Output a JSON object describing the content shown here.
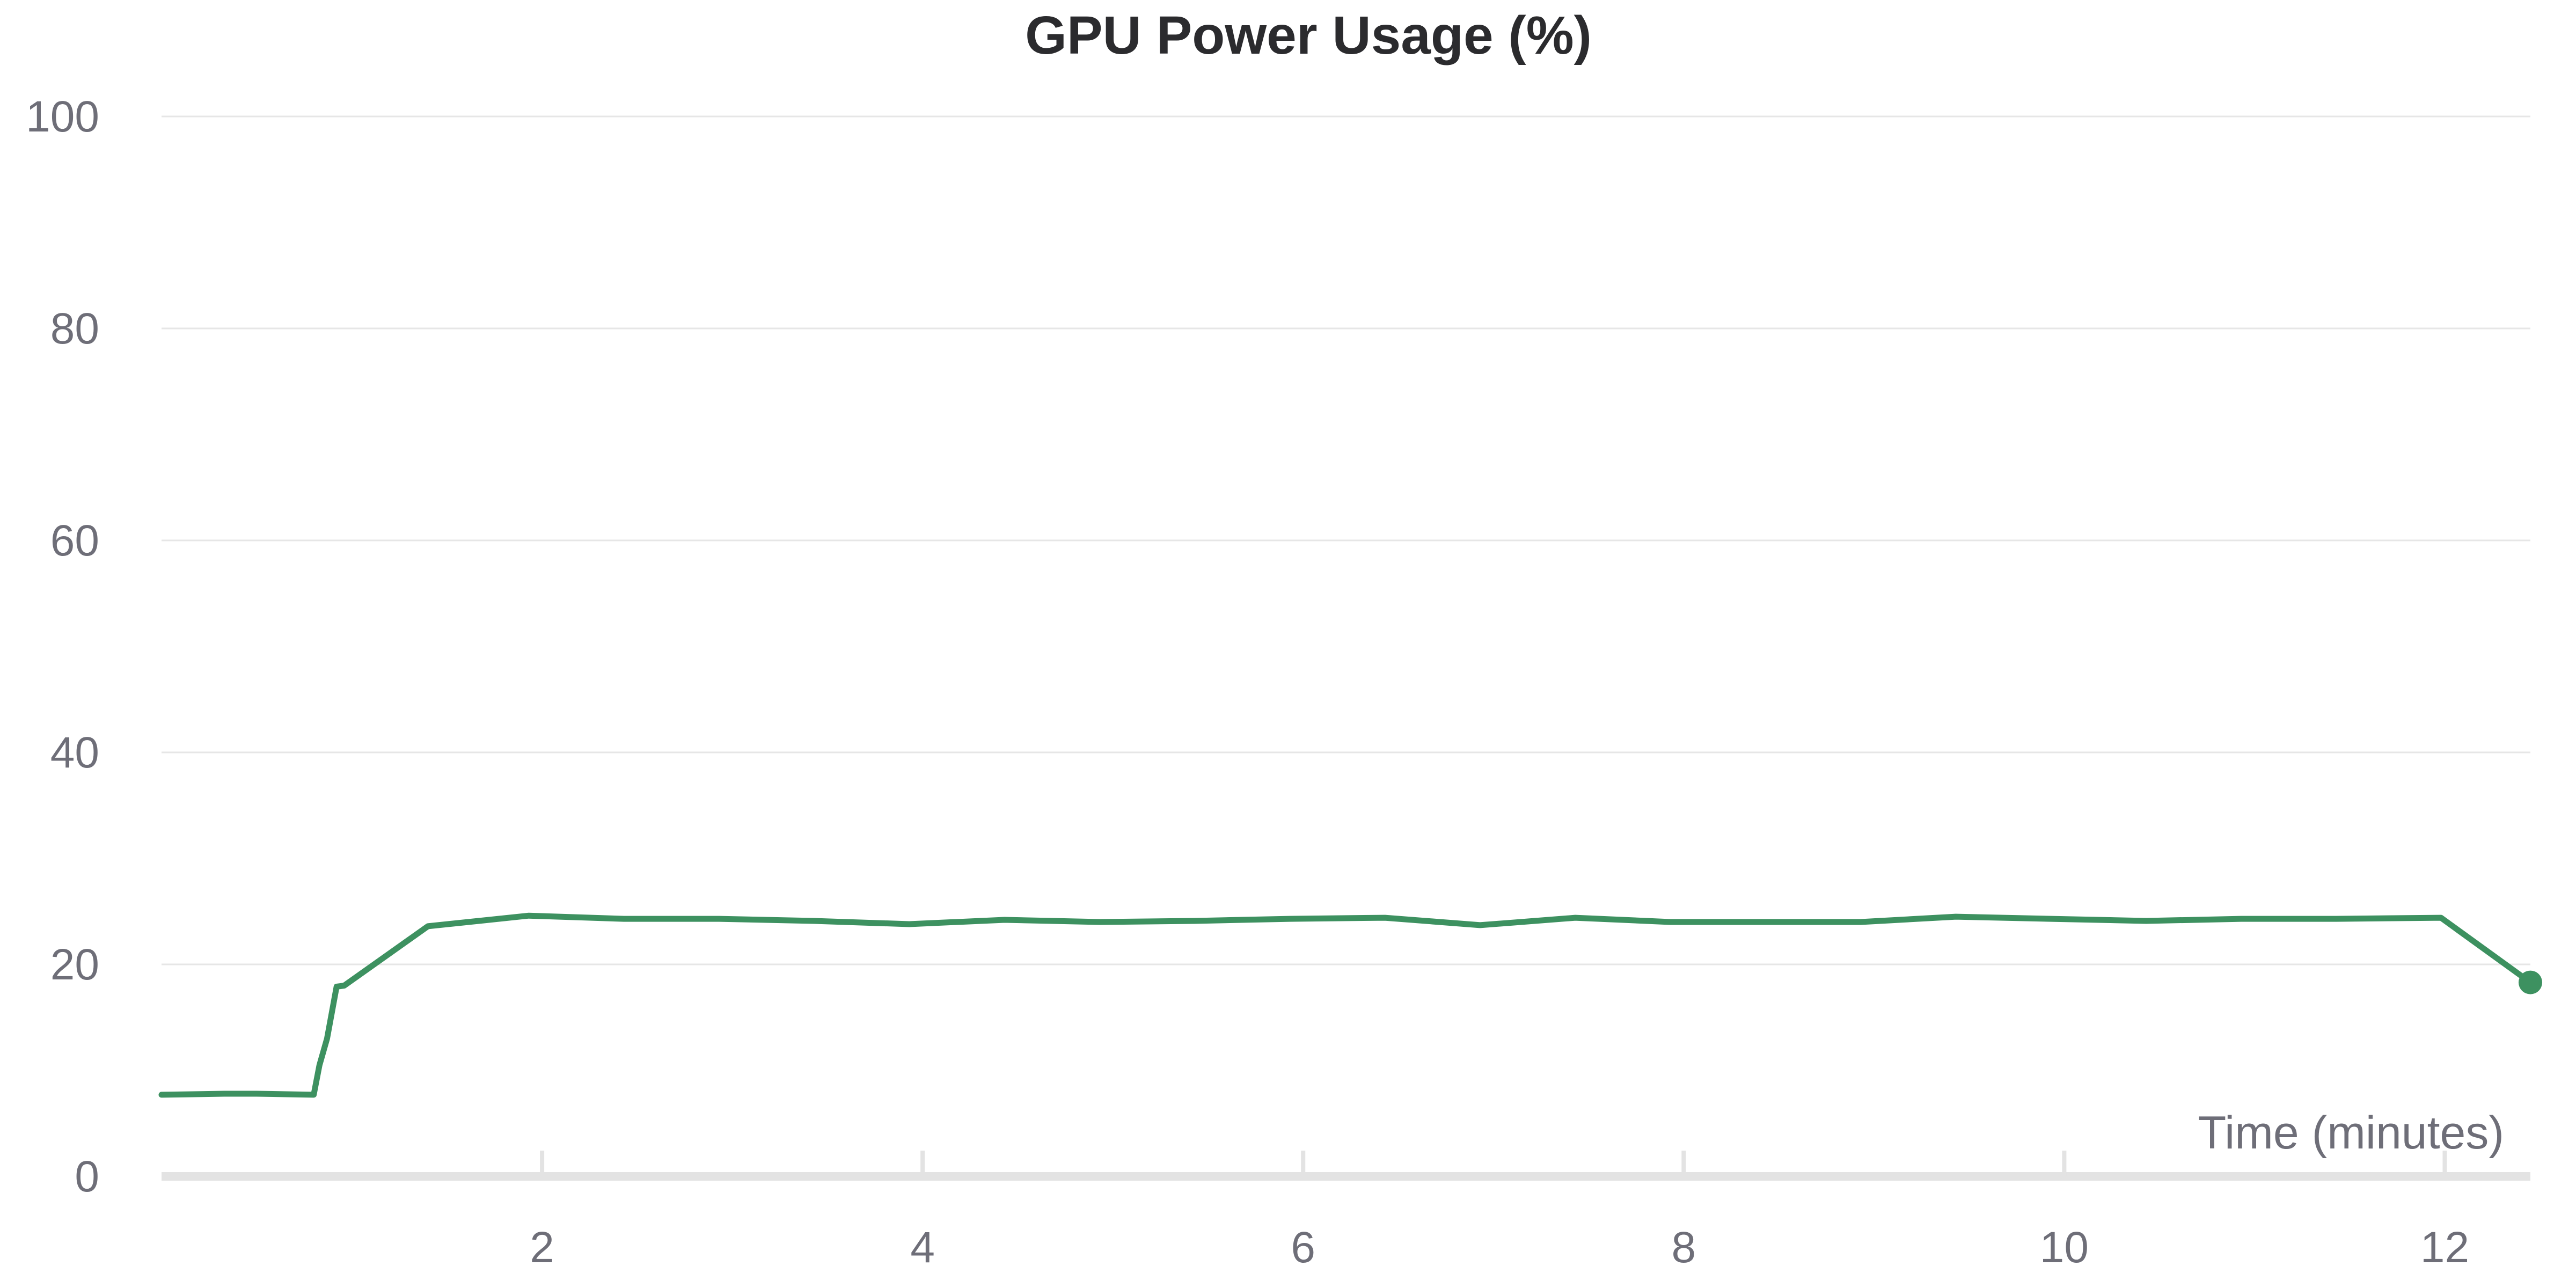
{
  "chart_data": {
    "type": "line",
    "title": "GPU Power Usage (%)",
    "xlabel": "Time (minutes)",
    "ylabel": "",
    "xlim": [
      0,
      12.45
    ],
    "ylim": [
      0,
      100
    ],
    "x_ticks": [
      2,
      4,
      6,
      8,
      10,
      12
    ],
    "x_tick_labels": [
      "2",
      "4",
      "6",
      "8",
      "10",
      "12"
    ],
    "y_ticks": [
      0,
      20,
      40,
      60,
      80,
      100
    ],
    "y_tick_labels": [
      "0",
      "20",
      "40",
      "60",
      "80",
      "100"
    ],
    "grid": "horizontal",
    "legend": "none",
    "colors": {
      "series": "#3d9160",
      "grid": "#e6e6e6",
      "axis": "#e3e3e3",
      "text": "#6e6e78",
      "title": "#2b2b2e"
    },
    "series": [
      {
        "x": [
          0.0,
          0.33,
          0.5,
          0.8,
          0.83,
          0.87,
          0.92,
          0.96,
          1.4,
          1.93,
          2.43,
          2.93,
          3.43,
          3.93,
          4.43,
          4.93,
          5.43,
          5.93,
          6.43,
          6.93,
          7.43,
          7.93,
          8.43,
          8.93,
          9.43,
          9.93,
          10.43,
          10.93,
          11.43,
          11.98,
          12.45
        ],
        "y": [
          7.7,
          7.8,
          7.8,
          7.7,
          10.5,
          13.0,
          17.9,
          18.0,
          23.6,
          24.6,
          24.3,
          24.3,
          24.1,
          23.8,
          24.2,
          24.0,
          24.1,
          24.3,
          24.4,
          23.7,
          24.4,
          24.0,
          24.0,
          24.0,
          24.5,
          24.3,
          24.1,
          24.3,
          24.3,
          24.4,
          18.3
        ]
      }
    ]
  }
}
